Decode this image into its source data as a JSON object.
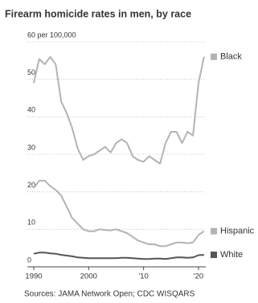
{
  "chart_data": {
    "type": "line",
    "title": "Firearm homicide rates in men, by race",
    "source": "Sources: JAMA Network Open; CDC WISQARS",
    "x": [
      1990,
      1991,
      1992,
      1993,
      1994,
      1995,
      1996,
      1997,
      1998,
      1999,
      2000,
      2001,
      2002,
      2003,
      2004,
      2005,
      2006,
      2007,
      2008,
      2009,
      2010,
      2011,
      2012,
      2013,
      2014,
      2015,
      2016,
      2017,
      2018,
      2019,
      2020,
      2021
    ],
    "xlim": [
      1990,
      2021
    ],
    "xticks": [
      1990,
      2000,
      {
        "value": 2010,
        "label": "'10"
      },
      {
        "value": 2020,
        "label": "'20"
      }
    ],
    "ylim": [
      0,
      60
    ],
    "yticks": [
      0,
      10,
      20,
      30,
      40,
      50,
      {
        "value": 60,
        "label": "60 per 100,000"
      }
    ],
    "grid": true,
    "series": [
      {
        "name": "Black",
        "color": "#b3b3b3",
        "values": [
          49,
          55.4,
          54,
          56,
          54,
          44,
          41,
          37,
          31.5,
          28.5,
          29.5,
          30,
          31,
          32,
          30.5,
          33,
          34,
          33,
          29.5,
          28.5,
          28,
          29.5,
          28.5,
          27.5,
          33,
          36,
          36,
          33,
          36,
          35,
          49,
          56
        ]
      },
      {
        "name": "Hispanic",
        "color": "#b3b3b3",
        "values": [
          21,
          23,
          23,
          21.5,
          20.5,
          19,
          16,
          13,
          11.5,
          10,
          9.5,
          9.5,
          10,
          9.8,
          9.7,
          10,
          9.5,
          9,
          8,
          7,
          6.5,
          6,
          6,
          5.5,
          5.5,
          6,
          6.5,
          6.5,
          6.3,
          6.5,
          8.5,
          9.5
        ]
      },
      {
        "name": "White",
        "color": "#555555",
        "values": [
          3.5,
          3.8,
          3.8,
          3.6,
          3.5,
          3.2,
          3.0,
          2.8,
          2.5,
          2.4,
          2.3,
          2.3,
          2.3,
          2.3,
          2.3,
          2.3,
          2.4,
          2.4,
          2.3,
          2.2,
          2.1,
          2.1,
          2.2,
          2.2,
          2.1,
          2.3,
          2.5,
          2.5,
          2.4,
          2.5,
          3.1,
          3.2
        ]
      }
    ]
  }
}
